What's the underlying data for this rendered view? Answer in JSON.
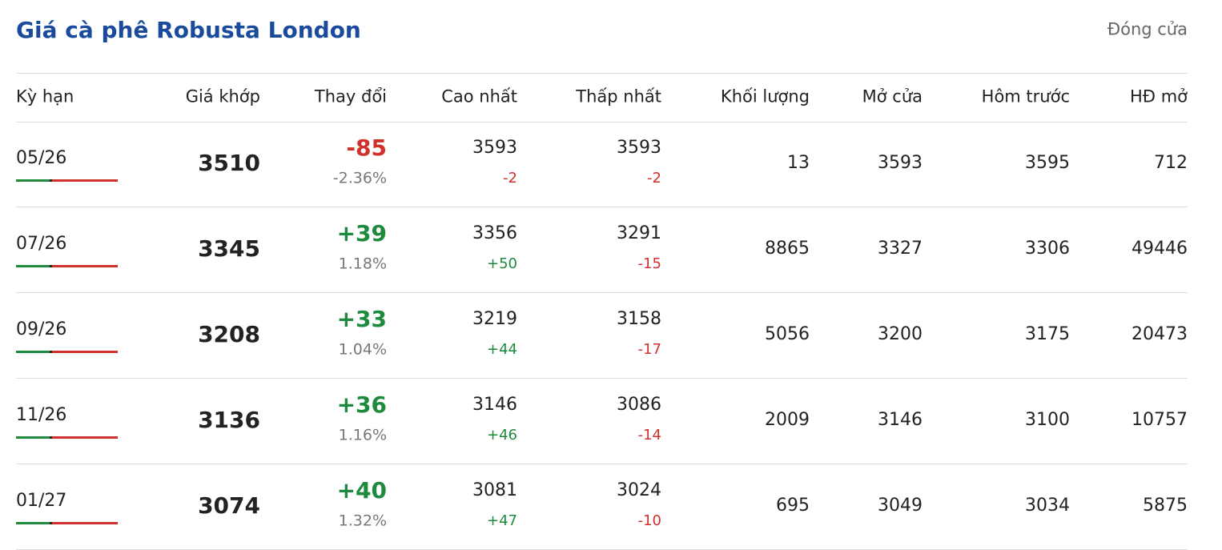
{
  "header": {
    "title": "Giá cà phê Robusta London",
    "status": "Đóng cửa"
  },
  "table": {
    "columns": [
      "Kỳ hạn",
      "Giá khớp",
      "Thay đổi",
      "Cao nhất",
      "Thấp nhất",
      "Khối lượng",
      "Mở cửa",
      "Hôm trước",
      "HĐ mở"
    ],
    "rows": [
      {
        "term": "05/26",
        "price": 3510,
        "change": "-85",
        "change_pct": "-2.36%",
        "high": 3593,
        "high_change": "-2",
        "low": 3593,
        "low_change": "-2",
        "volume": 13,
        "open": 3593,
        "prev": 3595,
        "oi": 712
      },
      {
        "term": "07/26",
        "price": 3345,
        "change": "+39",
        "change_pct": "1.18%",
        "high": 3356,
        "high_change": "+50",
        "low": 3291,
        "low_change": "-15",
        "volume": 8865,
        "open": 3327,
        "prev": 3306,
        "oi": 49446
      },
      {
        "term": "09/26",
        "price": 3208,
        "change": "+33",
        "change_pct": "1.04%",
        "high": 3219,
        "high_change": "+44",
        "low": 3158,
        "low_change": "-17",
        "volume": 5056,
        "open": 3200,
        "prev": 3175,
        "oi": 20473
      },
      {
        "term": "11/26",
        "price": 3136,
        "change": "+36",
        "change_pct": "1.16%",
        "high": 3146,
        "high_change": "+46",
        "low": 3086,
        "low_change": "-14",
        "volume": 2009,
        "open": 3146,
        "prev": 3100,
        "oi": 10757
      },
      {
        "term": "01/27",
        "price": 3074,
        "change": "+40",
        "change_pct": "1.32%",
        "high": 3081,
        "high_change": "+47",
        "low": 3024,
        "low_change": "-10",
        "volume": 695,
        "open": 3049,
        "prev": 3034,
        "oi": 5875
      }
    ]
  }
}
